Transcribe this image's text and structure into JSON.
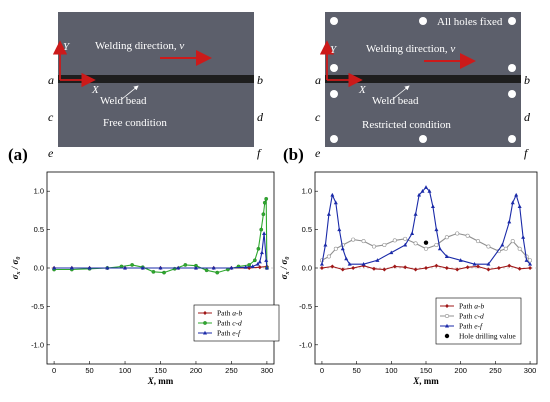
{
  "panels": [
    {
      "label": "(a)",
      "welding_direction": "Welding direction,",
      "v": "v",
      "weld_bead": "Weld bead",
      "condition": "Free condition",
      "axis_y": "Y",
      "axis_x": "X",
      "corners": {
        "a": "a",
        "b": "b",
        "c": "c",
        "d": "d",
        "e": "e",
        "f": "f"
      }
    },
    {
      "label": "(b)",
      "welding_direction": "Welding direction,",
      "v": "v",
      "weld_bead": "Weld bead",
      "condition": "Restricted condition",
      "holes_note": "All holes fixed",
      "axis_y": "Y",
      "axis_x": "X",
      "corners": {
        "a": "a",
        "b": "b",
        "c": "c",
        "d": "d",
        "e": "e",
        "f": "f"
      }
    }
  ],
  "colors": {
    "plate": "#5c5f6b",
    "bead": "#1e1e1e",
    "arrow": "#cc1a1a",
    "axes": "#cc1a1a",
    "path_ab": "#a01818",
    "path_cd_a": "#2ea82e",
    "path_cd_b": "#909090",
    "path_ef": "#1a2aa8"
  },
  "chart_data": [
    {
      "type": "line",
      "xlabel": "X",
      "xunit": ", mm",
      "ylabel_num": "σ",
      "ylabel_num_sub": "x",
      "ylabel_den": "σ",
      "ylabel_den_sub": "0",
      "xlim": [
        -10,
        310
      ],
      "ylim": [
        -1.25,
        1.25
      ],
      "xticks": [
        "0",
        "50",
        "100",
        "150",
        "200",
        "250",
        "300"
      ],
      "yticks": [
        "-1.0",
        "-0.5",
        "0.0",
        "0.5",
        "1.0"
      ],
      "series": [
        {
          "name": "Path ",
          "name_it": "a-b",
          "marker": "diamond",
          "x": [
            0,
            25,
            50,
            75,
            100,
            125,
            150,
            175,
            200,
            225,
            250,
            275,
            290,
            300
          ],
          "y": [
            0.0,
            0.0,
            0.0,
            0.0,
            0.0,
            0.0,
            0.0,
            0.0,
            0.0,
            0.0,
            0.0,
            0.0,
            0.01,
            0.02
          ]
        },
        {
          "name": "Path ",
          "name_it": "c-d",
          "marker": "circle",
          "x": [
            0,
            25,
            50,
            75,
            95,
            110,
            125,
            140,
            155,
            170,
            185,
            200,
            215,
            230,
            245,
            260,
            275,
            283,
            288,
            292,
            295,
            297,
            299,
            300
          ],
          "y": [
            -0.02,
            -0.02,
            -0.01,
            0.0,
            0.02,
            0.04,
            0.01,
            -0.05,
            -0.06,
            -0.01,
            0.04,
            0.03,
            -0.03,
            -0.06,
            -0.02,
            0.02,
            0.04,
            0.1,
            0.25,
            0.5,
            0.7,
            0.85,
            0.9,
            0.0
          ]
        },
        {
          "name": "Path ",
          "name_it": "e-f",
          "marker": "triangle",
          "x": [
            0,
            25,
            50,
            75,
            100,
            125,
            150,
            175,
            200,
            225,
            250,
            270,
            280,
            287,
            290,
            293,
            296,
            299,
            300
          ],
          "y": [
            0.0,
            0.0,
            0.0,
            0.0,
            0.0,
            0.0,
            0.0,
            0.0,
            0.0,
            0.0,
            0.0,
            0.01,
            0.02,
            0.05,
            0.08,
            0.2,
            0.45,
            0.1,
            0.0
          ]
        }
      ]
    },
    {
      "type": "line",
      "xlabel": "X",
      "xunit": ", mm",
      "ylabel_num": "σ",
      "ylabel_num_sub": "x",
      "ylabel_den": "σ",
      "ylabel_den_sub": "0",
      "xlim": [
        -10,
        310
      ],
      "ylim": [
        -1.25,
        1.25
      ],
      "xticks": [
        "0",
        "50",
        "100",
        "150",
        "200",
        "250",
        "300"
      ],
      "yticks": [
        "-1.0",
        "-0.5",
        "0.0",
        "0.5",
        "1.0"
      ],
      "series": [
        {
          "name": "Path ",
          "name_it": "a-b",
          "marker": "diamond",
          "x": [
            0,
            15,
            30,
            45,
            60,
            75,
            90,
            105,
            120,
            135,
            150,
            165,
            180,
            195,
            210,
            225,
            240,
            255,
            270,
            285,
            300
          ],
          "y": [
            0.0,
            0.02,
            -0.02,
            0.0,
            0.03,
            -0.01,
            -0.02,
            0.02,
            0.01,
            -0.02,
            0.0,
            0.03,
            0.0,
            -0.02,
            0.01,
            0.02,
            -0.02,
            0.0,
            0.03,
            -0.01,
            0.0
          ]
        },
        {
          "name": "Path ",
          "name_it": "c-d",
          "marker": "hollow",
          "x": [
            0,
            10,
            20,
            30,
            45,
            60,
            75,
            90,
            105,
            120,
            135,
            150,
            165,
            180,
            195,
            210,
            225,
            240,
            255,
            265,
            275,
            285,
            295,
            300
          ],
          "y": [
            0.1,
            0.15,
            0.25,
            0.3,
            0.37,
            0.35,
            0.28,
            0.3,
            0.36,
            0.38,
            0.32,
            0.25,
            0.3,
            0.4,
            0.45,
            0.42,
            0.35,
            0.28,
            0.22,
            0.25,
            0.35,
            0.25,
            0.15,
            0.1
          ]
        },
        {
          "name": "Path ",
          "name_it": "e-f",
          "marker": "triangle",
          "x": [
            0,
            5,
            10,
            15,
            20,
            25,
            30,
            35,
            40,
            60,
            80,
            100,
            120,
            130,
            135,
            140,
            145,
            150,
            155,
            160,
            165,
            170,
            180,
            200,
            220,
            240,
            260,
            270,
            275,
            280,
            285,
            290,
            295,
            300
          ],
          "y": [
            0.05,
            0.3,
            0.7,
            0.95,
            0.85,
            0.5,
            0.25,
            0.12,
            0.05,
            0.05,
            0.1,
            0.2,
            0.3,
            0.45,
            0.7,
            0.95,
            1.0,
            1.05,
            1.0,
            0.8,
            0.5,
            0.25,
            0.15,
            0.1,
            0.05,
            0.05,
            0.3,
            0.6,
            0.85,
            0.95,
            0.8,
            0.4,
            0.1,
            0.05
          ]
        },
        {
          "name": "Hole drilling value",
          "marker": "dot",
          "x": [
            150
          ],
          "y": [
            0.33
          ]
        }
      ]
    }
  ]
}
